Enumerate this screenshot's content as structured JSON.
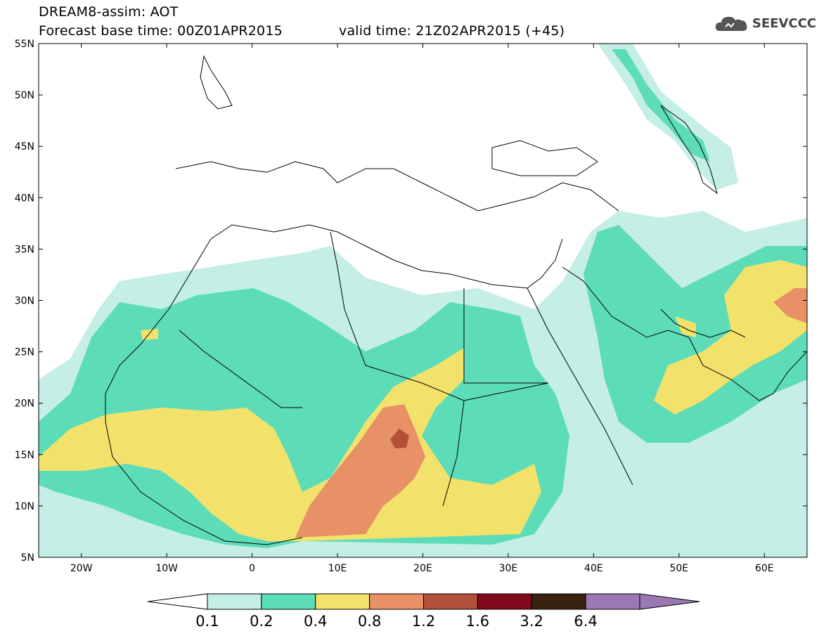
{
  "header": {
    "title": "DREAM8-assim: AOT",
    "base_time": "Forecast base time: 00Z01APR2015",
    "valid_time": "valid time: 21Z02APR2015 (+45)",
    "logo_text": "SEEVCCC"
  },
  "map": {
    "lat_labels": [
      "55N",
      "50N",
      "45N",
      "40N",
      "35N",
      "30N",
      "25N",
      "20N",
      "15N",
      "10N",
      "5N"
    ],
    "lon_labels": [
      "20W",
      "10W",
      "0",
      "10E",
      "20E",
      "30E",
      "40E",
      "50E",
      "60E"
    ],
    "lon_range": [
      -25,
      65
    ],
    "lat_range": [
      5,
      55
    ]
  },
  "colorbar": {
    "labels": [
      "0.1",
      "0.2",
      "0.4",
      "0.8",
      "1.2",
      "1.6",
      "3.2",
      "6.4"
    ],
    "colors": [
      "#ffffff",
      "#c4eee6",
      "#5ddcb8",
      "#f2e26c",
      "#e89066",
      "#b2503c",
      "#820a20",
      "#3a2210",
      "#9a78b4"
    ]
  }
}
